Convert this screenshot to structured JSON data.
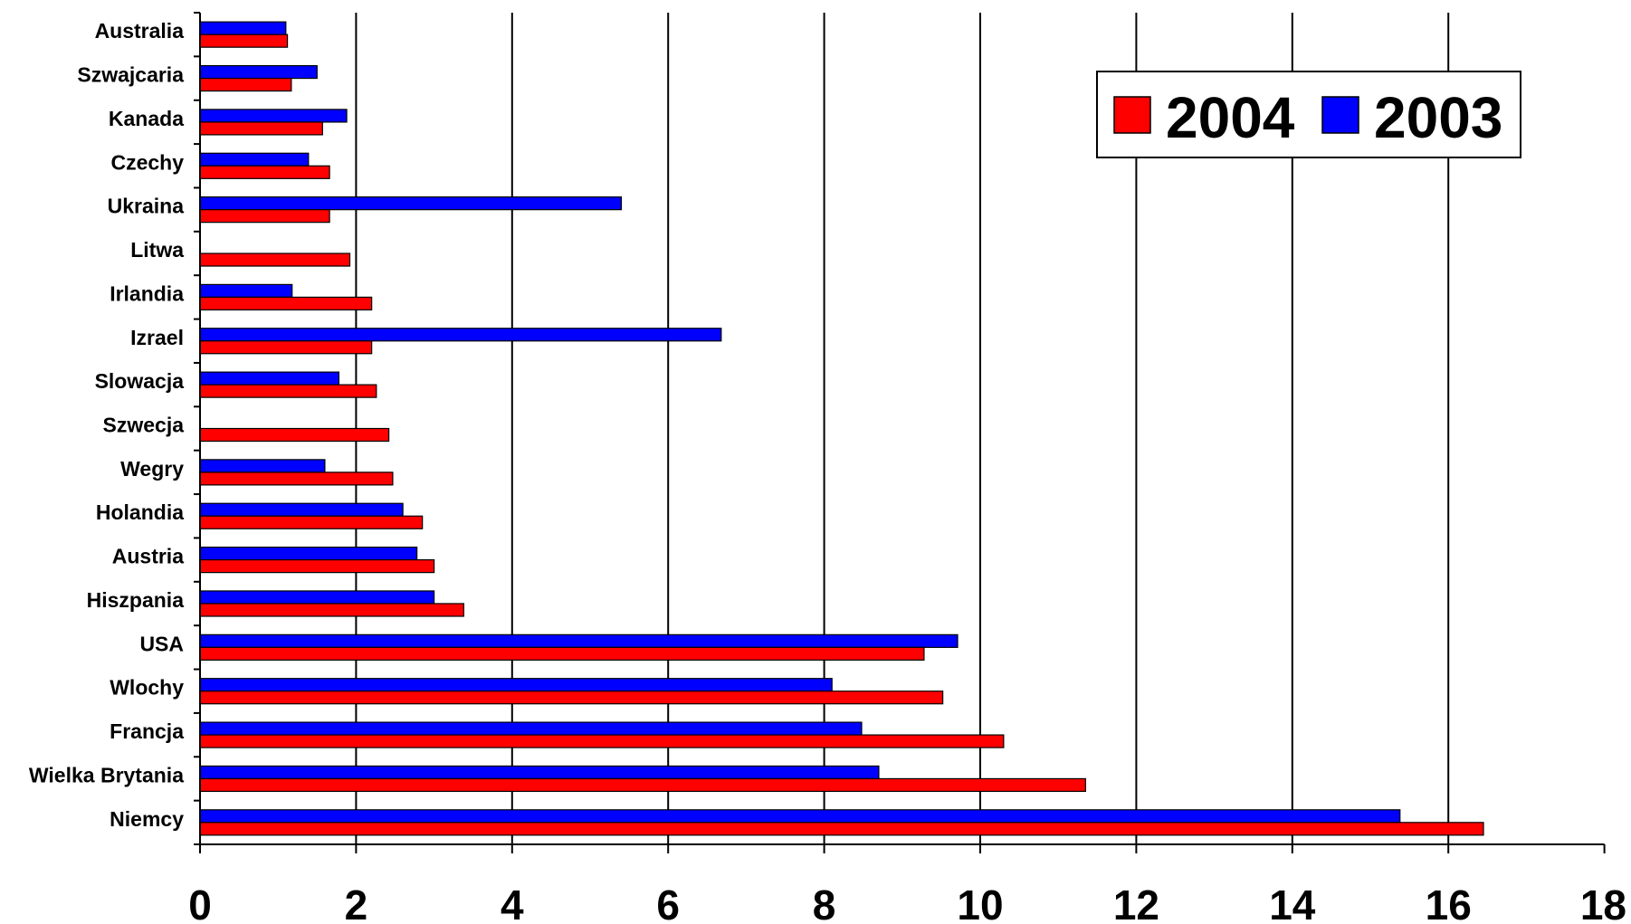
{
  "chart_data": {
    "type": "bar",
    "orientation": "horizontal",
    "categories": [
      "Niemcy",
      "Wielka Brytania",
      "Francja",
      "Wlochy",
      "USA",
      "Hiszpania",
      "Austria",
      "Holandia",
      "Wegry",
      "Szwecja",
      "Slowacja",
      "Izrael",
      "Irlandia",
      "Litwa",
      "Ukraina",
      "Czechy",
      "Kanada",
      "Szwajcaria",
      "Australia"
    ],
    "series": [
      {
        "name": "2004",
        "color": "#FF0000",
        "values": [
          16.45,
          11.35,
          10.3,
          9.52,
          9.28,
          3.38,
          3.0,
          2.85,
          2.47,
          2.42,
          2.26,
          2.2,
          2.2,
          1.92,
          1.66,
          1.66,
          1.57,
          1.17,
          1.12
        ]
      },
      {
        "name": "2003",
        "color": "#0000FF",
        "values": [
          15.38,
          8.7,
          8.48,
          8.1,
          9.71,
          3.0,
          2.78,
          2.6,
          1.6,
          null,
          1.78,
          6.68,
          1.18,
          null,
          5.4,
          1.39,
          1.88,
          1.5,
          1.1
        ]
      }
    ],
    "xlim": [
      0,
      18
    ],
    "xticks": [
      "0",
      "2",
      "4",
      "6",
      "8",
      "10",
      "12",
      "14",
      "16",
      "18"
    ],
    "grid": "vertical",
    "legend_position": "top-right",
    "legend_order": [
      "2004",
      "2003"
    ],
    "title": "",
    "xlabel": "",
    "ylabel": ""
  }
}
